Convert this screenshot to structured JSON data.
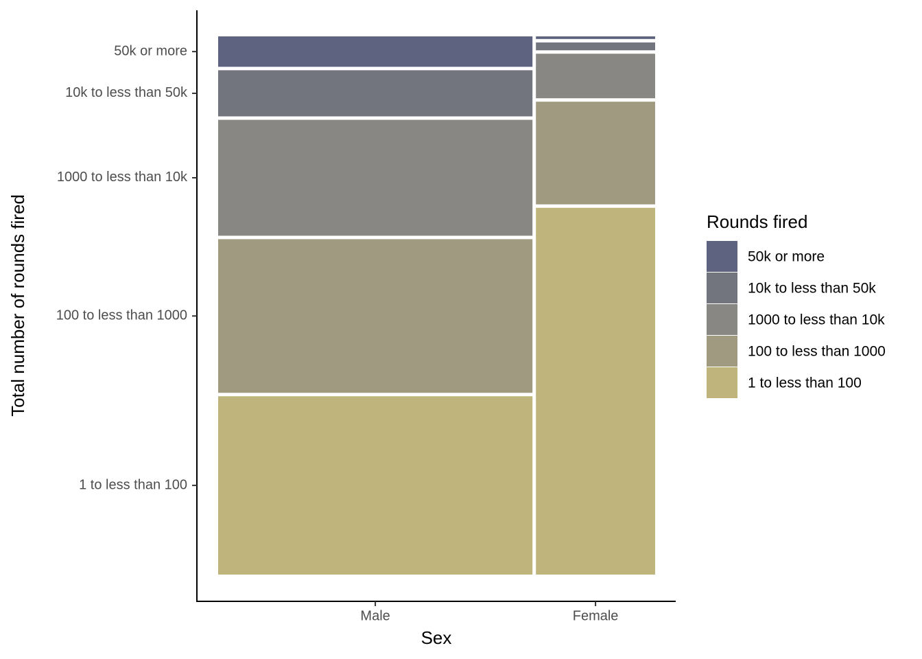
{
  "chart_data": {
    "type": "mosaic",
    "x_label": "Sex",
    "y_label": "Total number of rounds fired",
    "legend_title": "Rounds fired",
    "categories": [
      "Male",
      "Female"
    ],
    "category_shares": [
      72.5,
      27.5
    ],
    "series": [
      {
        "name": "50k or more",
        "color": "#5e6480",
        "values": [
          5.8,
          0.5
        ]
      },
      {
        "name": "10k to less than 50k",
        "color": "#72757d",
        "values": [
          8.8,
          1.5
        ]
      },
      {
        "name": "1000 to less than 10k",
        "color": "#888784",
        "values": [
          22.1,
          8.5
        ]
      },
      {
        "name": "100 to less than 1000",
        "color": "#a09b80",
        "values": [
          29.3,
          19.6
        ]
      },
      {
        "name": "1 to less than 100",
        "color": "#bfb57c",
        "values": [
          34.0,
          70.0
        ]
      }
    ],
    "legend": "right"
  }
}
